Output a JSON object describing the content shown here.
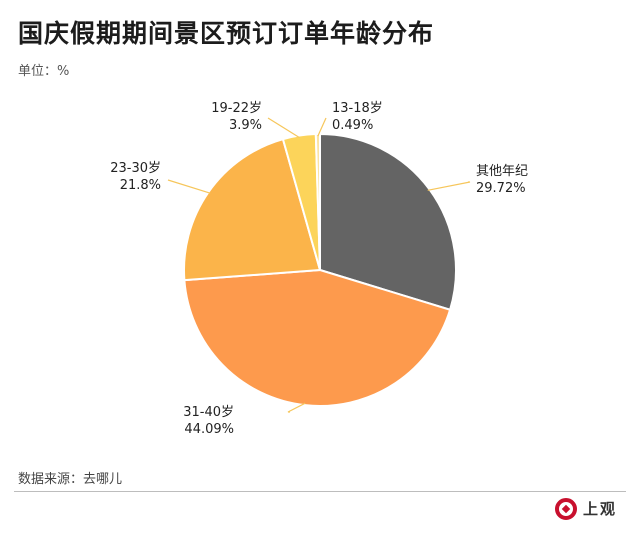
{
  "title": "国庆假期期间景区预订订单年龄分布",
  "unit": "单位：%",
  "source": "数据来源：去哪儿",
  "logo": "上观",
  "colors": {
    "其他年纪": "#646464",
    "31-40岁": "#fd9a4d",
    "23-30岁": "#fbb44a",
    "19-22岁": "#fcd45a",
    "13-18岁": "#fbe3a3",
    "leader": "#f6c65b"
  },
  "chart_data": {
    "type": "pie",
    "title": "国庆假期期间景区预订订单年龄分布",
    "unit": "%",
    "slices": [
      {
        "label": "其他年纪",
        "value": 29.72,
        "display": "29.72%"
      },
      {
        "label": "31-40岁",
        "value": 44.09,
        "display": "44.09%"
      },
      {
        "label": "23-30岁",
        "value": 21.8,
        "display": "21.8%"
      },
      {
        "label": "19-22岁",
        "value": 3.9,
        "display": "3.9%"
      },
      {
        "label": "13-18岁",
        "value": 0.49,
        "display": "0.49%"
      }
    ],
    "start": "12 o'clock",
    "direction": "clockwise",
    "legend": "none"
  }
}
